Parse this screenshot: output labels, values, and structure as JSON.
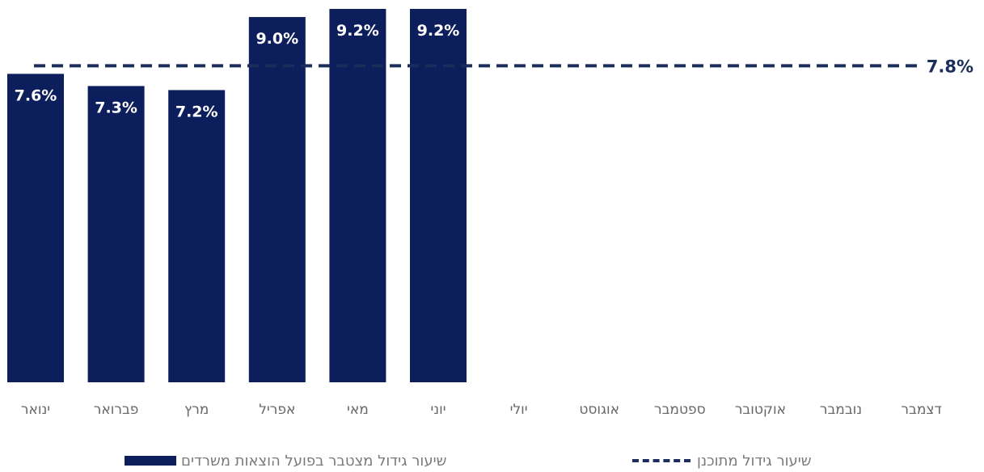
{
  "chart_data": {
    "type": "bar",
    "categories": [
      "ינואר",
      "פברואר",
      "מרץ",
      "אפריל",
      "מאי",
      "יוני",
      "יולי",
      "אוגוסט",
      "ספטמבר",
      "אוקטובר",
      "נובמבר",
      "דצמבר"
    ],
    "series": [
      {
        "name": "שיעור גידול מצטבר בפועל הוצאות משרדים",
        "values": [
          7.6,
          7.3,
          7.2,
          9.0,
          9.2,
          9.2,
          null,
          null,
          null,
          null,
          null,
          null
        ],
        "labels": [
          "7.6%",
          "7.3%",
          "7.2%",
          "9.0%",
          "9.2%",
          "9.2%"
        ],
        "color": "#0d1e5c"
      }
    ],
    "reference_line": {
      "name": "שיעור גידול מתוכנן",
      "value": 7.8,
      "label": "7.8%",
      "style": "dashed",
      "color": "#1b2d5a"
    },
    "ylim": [
      0,
      9.3
    ],
    "grid": false,
    "legend_position": "bottom"
  }
}
